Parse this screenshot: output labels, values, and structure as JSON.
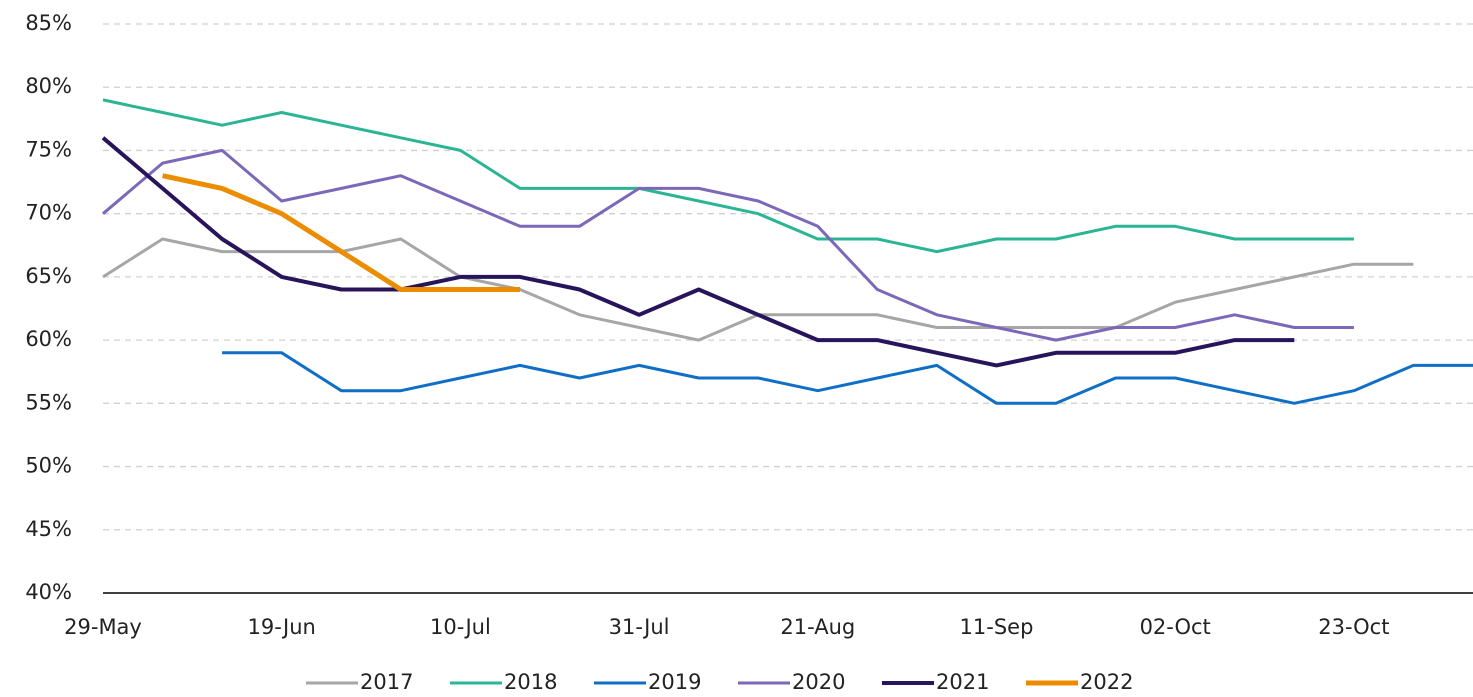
{
  "chart_data": {
    "type": "line",
    "categories": [
      "29-May",
      null,
      null,
      "19-Jun",
      null,
      null,
      "10-Jul",
      null,
      null,
      "31-Jul",
      null,
      null,
      "21-Aug",
      null,
      null,
      "11-Sep",
      null,
      null,
      "02-Oct",
      null,
      null,
      "23-Oct",
      null,
      null
    ],
    "series": [
      {
        "name": "2017",
        "color": "#a6a6a6",
        "line_width": 3,
        "values": [
          65,
          68,
          67,
          67,
          67,
          68,
          65,
          64,
          62,
          61,
          60,
          62,
          62,
          62,
          61,
          61,
          61,
          61,
          63,
          64,
          65,
          66,
          66,
          null
        ]
      },
      {
        "name": "2018",
        "color": "#2bb594",
        "line_width": 3,
        "values": [
          79,
          78,
          77,
          78,
          77,
          76,
          75,
          72,
          72,
          72,
          71,
          70,
          68,
          68,
          67,
          68,
          68,
          69,
          69,
          68,
          68,
          68,
          null,
          null
        ]
      },
      {
        "name": "2019",
        "color": "#0f6fc6",
        "line_width": 3,
        "values": [
          null,
          null,
          59,
          59,
          56,
          56,
          57,
          58,
          57,
          58,
          57,
          57,
          56,
          57,
          58,
          55,
          55,
          57,
          57,
          56,
          55,
          56,
          58,
          58
        ]
      },
      {
        "name": "2020",
        "color": "#7b68b9",
        "line_width": 3,
        "values": [
          70,
          74,
          75,
          71,
          72,
          73,
          71,
          69,
          69,
          72,
          72,
          71,
          69,
          64,
          62,
          61,
          60,
          61,
          61,
          62,
          61,
          61,
          null,
          null
        ]
      },
      {
        "name": "2021",
        "color": "#28145a",
        "line_width": 4,
        "values": [
          76,
          72,
          68,
          65,
          64,
          64,
          65,
          65,
          64,
          62,
          64,
          62,
          60,
          60,
          59,
          58,
          59,
          59,
          59,
          60,
          60,
          null,
          null,
          null
        ]
      },
      {
        "name": "2022",
        "color": "#ec8c00",
        "line_width": 5,
        "values": [
          null,
          73,
          72,
          70,
          67,
          64,
          64,
          64,
          null,
          null,
          null,
          null,
          null,
          null,
          null,
          null,
          null,
          null,
          null,
          null,
          null,
          null,
          null,
          null
        ]
      }
    ],
    "ylim": [
      40,
      85
    ],
    "yticks": [
      {
        "value": 40,
        "label": "40%"
      },
      {
        "value": 45,
        "label": "45%"
      },
      {
        "value": 50,
        "label": "50%"
      },
      {
        "value": 55,
        "label": "55%"
      },
      {
        "value": 60,
        "label": "60%"
      },
      {
        "value": 65,
        "label": "65%"
      },
      {
        "value": 70,
        "label": "70%"
      },
      {
        "value": 75,
        "label": "75%"
      },
      {
        "value": 80,
        "label": "80%"
      },
      {
        "value": 85,
        "label": "85%"
      }
    ],
    "grid": true,
    "legend": "bottom"
  }
}
